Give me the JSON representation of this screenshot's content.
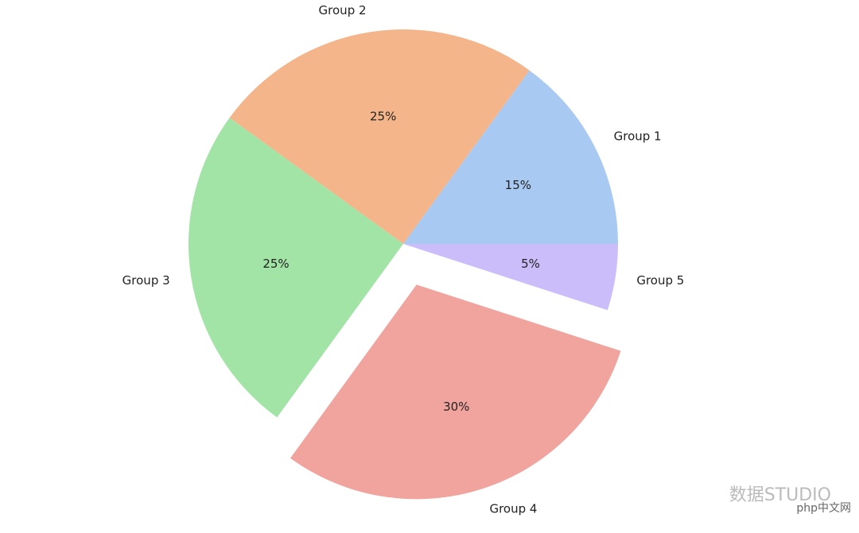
{
  "chart_data": {
    "type": "pie",
    "categories": [
      "Group 1",
      "Group 2",
      "Group 3",
      "Group 4",
      "Group 5"
    ],
    "values": [
      15,
      25,
      25,
      30,
      5
    ],
    "value_labels": [
      "15%",
      "25%",
      "25%",
      "30%",
      "5%"
    ],
    "colors": [
      "#a8c9f1",
      "#f4b58a",
      "#a2e3a6",
      "#f1a39d",
      "#cbbdf9"
    ],
    "explode": [
      0,
      0,
      0,
      0.2,
      0
    ],
    "start_angle": 0,
    "watermark": [
      "数据STUDIO",
      "php中文网"
    ]
  }
}
